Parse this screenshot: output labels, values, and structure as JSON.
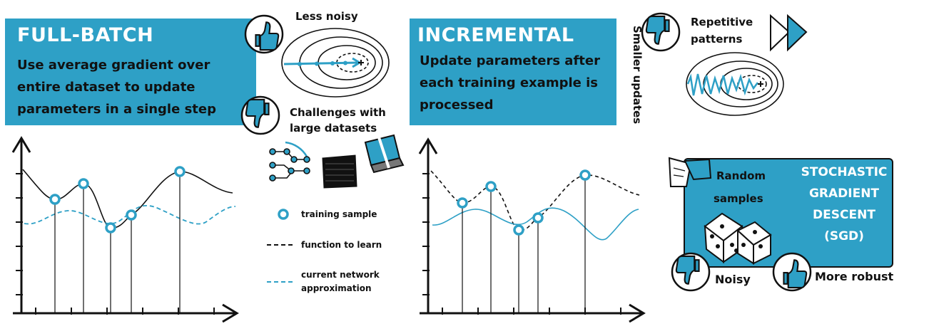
{
  "full_batch": {
    "title": "FULL-BATCH",
    "description": [
      "Use average gradient over",
      "entire dataset to update",
      "parameters in a single step"
    ],
    "pro_label": "Less noisy",
    "con_label": [
      "Challenges with",
      "large datasets"
    ]
  },
  "incremental": {
    "title": "INCREMENTAL",
    "description": [
      "Update parameters after",
      "each training example is",
      "processed"
    ],
    "side_label": "Smaller updates",
    "con_label": [
      "Repetitive",
      "patterns"
    ]
  },
  "legend": {
    "sample": "training sample",
    "function": "function to learn",
    "approximation": [
      "current network",
      "approximation"
    ]
  },
  "sgd": {
    "title": [
      "STOCHASTIC",
      "GRADIENT",
      "DESCENT",
      "(SGD)"
    ],
    "random_label": [
      "Random",
      "samples"
    ],
    "con_label": "Noisy",
    "pro_label": "More robust"
  },
  "icons": [
    "thumbs-up-icon",
    "thumbs-down-icon",
    "fast-forward-icon",
    "dice-icon",
    "network-icon",
    "data-stack-icon",
    "computer-icon",
    "contour-plot-icon"
  ],
  "colors": {
    "accent": "#2ea0c6",
    "curve_true": "#111111",
    "curve_approx": "#2ea0c6"
  }
}
